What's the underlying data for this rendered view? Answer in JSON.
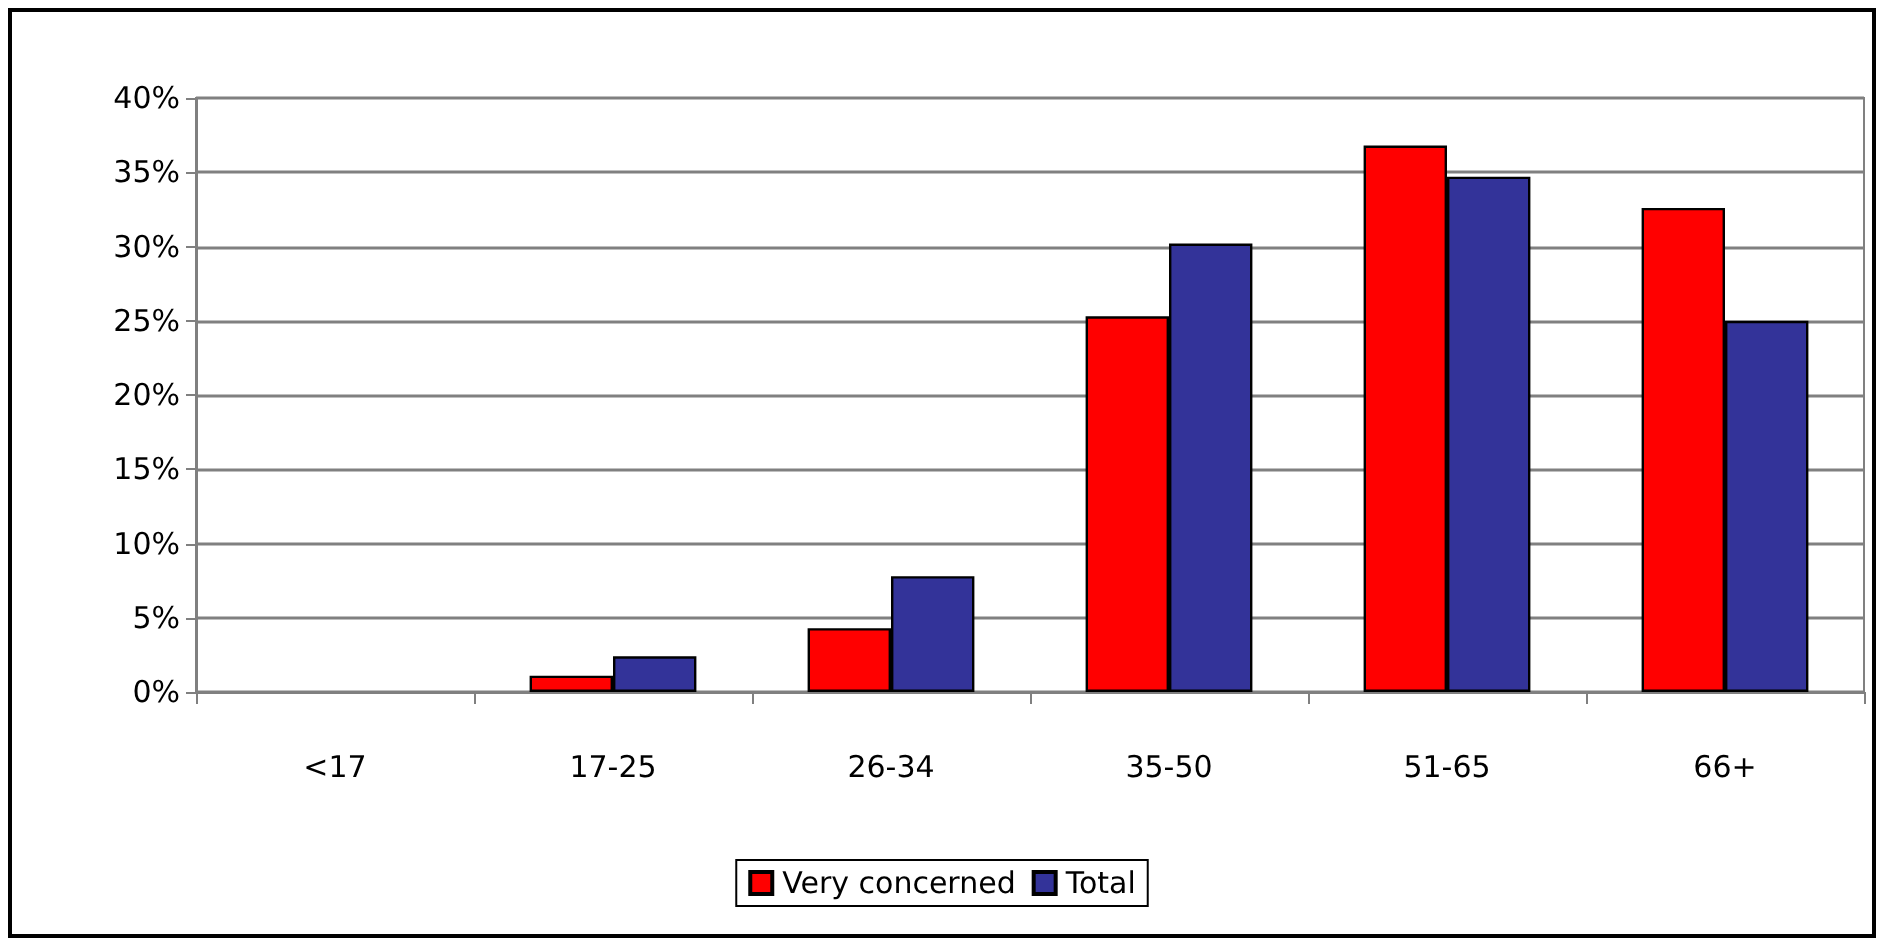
{
  "chart_data": {
    "type": "bar",
    "categories": [
      "<17",
      "17-25",
      "26-34",
      "35-50",
      "51-65",
      "66+"
    ],
    "series": [
      {
        "name": "Very concerned",
        "color": "#ff0000",
        "values": [
          0,
          1.1,
          4.3,
          25.3,
          36.8,
          32.6
        ]
      },
      {
        "name": "Total",
        "color": "#333399",
        "values": [
          0,
          2.4,
          7.8,
          30.2,
          34.7,
          25.0
        ]
      }
    ],
    "ylim": [
      0,
      40
    ],
    "yticks": [
      {
        "value": 0,
        "label": "0%"
      },
      {
        "value": 5,
        "label": "5%"
      },
      {
        "value": 10,
        "label": "10%"
      },
      {
        "value": 15,
        "label": "15%"
      },
      {
        "value": 20,
        "label": "20%"
      },
      {
        "value": 25,
        "label": "25%"
      },
      {
        "value": 30,
        "label": "30%"
      },
      {
        "value": 35,
        "label": "35%"
      },
      {
        "value": 40,
        "label": "40%"
      }
    ],
    "grid": "y",
    "legend": "bottom"
  }
}
